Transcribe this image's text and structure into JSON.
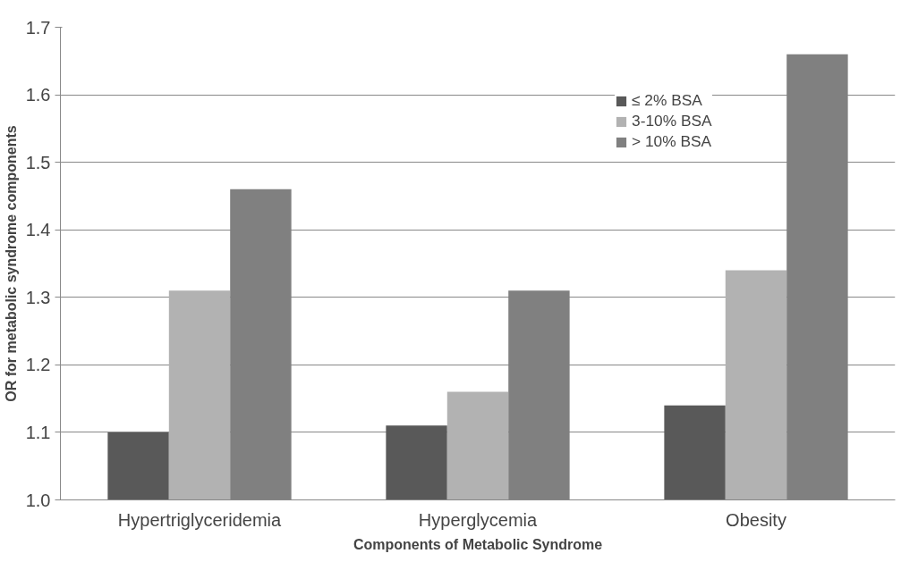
{
  "chart_data": {
    "type": "bar",
    "xlabel": "Components of Metabolic Syndrome",
    "ylabel": "OR for metabolic syndrome components",
    "categories": [
      "Hypertriglyceridemia",
      "Hyperglycemia",
      "Obesity"
    ],
    "series": [
      {
        "name": "≤ 2% BSA",
        "color": "#595959",
        "values": [
          1.1,
          1.11,
          1.14
        ]
      },
      {
        "name": "3-10% BSA",
        "color": "#b2b2b2",
        "values": [
          1.31,
          1.16,
          1.34
        ]
      },
      {
        "name": "> 10% BSA",
        "color": "#808080",
        "values": [
          1.46,
          1.31,
          1.66
        ]
      }
    ],
    "ylim": [
      1.0,
      1.7
    ],
    "yticks": [
      {
        "value": 1.0,
        "label": "1.0"
      },
      {
        "value": 1.1,
        "label": "1.1"
      },
      {
        "value": 1.2,
        "label": "1.2"
      },
      {
        "value": 1.3,
        "label": "1.3"
      },
      {
        "value": 1.4,
        "label": "1.4"
      },
      {
        "value": 1.5,
        "label": "1.5"
      },
      {
        "value": 1.6,
        "label": "1.6"
      },
      {
        "value": 1.7,
        "label": "1.7"
      }
    ],
    "grid": "y",
    "legend": "top right"
  }
}
